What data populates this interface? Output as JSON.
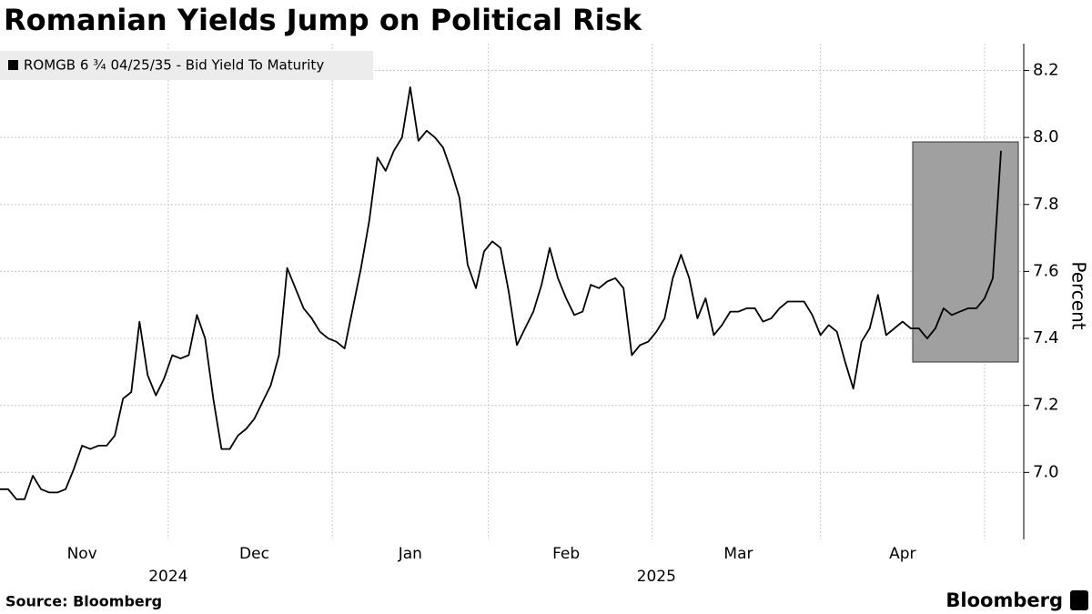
{
  "chart_data": {
    "type": "line",
    "title": "Romanian Yields Jump on Political Risk",
    "y_label": "Percent",
    "source": "Source: Bloomberg",
    "brand": "Bloomberg",
    "categories": [
      null,
      null,
      null,
      null,
      null,
      null,
      null,
      null,
      null,
      null,
      "Nov",
      null,
      null,
      null,
      null,
      null,
      null,
      null,
      null,
      null,
      null,
      null,
      null,
      null,
      null,
      null,
      null,
      null,
      null,
      null,
      null,
      "Dec",
      null,
      null,
      null,
      null,
      null,
      null,
      null,
      null,
      null,
      null,
      null,
      null,
      null,
      null,
      null,
      null,
      null,
      null,
      "Jan",
      null,
      null,
      null,
      null,
      null,
      null,
      null,
      null,
      null,
      null,
      null,
      null,
      null,
      null,
      null,
      null,
      null,
      null,
      "Feb",
      null,
      null,
      null,
      null,
      null,
      null,
      null,
      null,
      null,
      null,
      null,
      null,
      null,
      null,
      null,
      null,
      null,
      null,
      null,
      null,
      "Mar",
      null,
      null,
      null,
      null,
      null,
      null,
      null,
      null,
      null,
      null,
      null,
      null,
      null,
      null,
      null,
      null,
      null,
      null,
      null,
      "Apr",
      null,
      null,
      null,
      null,
      null,
      null,
      null,
      null,
      null,
      null,
      null,
      null
    ],
    "x_groups": [
      {
        "label": "2024",
        "categories": [
          "Nov",
          "Dec"
        ]
      },
      {
        "label": "2025",
        "categories": [
          "Jan",
          "Feb",
          "Mar",
          "Apr"
        ]
      }
    ],
    "series": [
      {
        "name": "ROMGB 6 ¾ 04/25/35 - Bid Yield To Maturity",
        "color": "#000000",
        "values": [
          6.95,
          6.95,
          6.92,
          6.92,
          6.99,
          6.95,
          6.94,
          6.94,
          6.95,
          7.01,
          7.08,
          7.07,
          7.08,
          7.08,
          7.11,
          7.22,
          7.24,
          7.45,
          7.29,
          7.23,
          7.28,
          7.35,
          7.34,
          7.35,
          7.47,
          7.4,
          7.22,
          7.07,
          7.07,
          7.11,
          7.13,
          7.16,
          7.21,
          7.26,
          7.35,
          7.61,
          7.55,
          7.49,
          7.46,
          7.42,
          7.4,
          7.39,
          7.37,
          7.49,
          7.61,
          7.75,
          7.94,
          7.9,
          7.96,
          8.0,
          8.15,
          7.99,
          8.02,
          8.0,
          7.97,
          7.9,
          7.82,
          7.62,
          7.55,
          7.66,
          7.69,
          7.67,
          7.54,
          7.38,
          7.43,
          7.48,
          7.56,
          7.67,
          7.58,
          7.52,
          7.47,
          7.48,
          7.56,
          7.55,
          7.57,
          7.58,
          7.55,
          7.35,
          7.38,
          7.39,
          7.42,
          7.46,
          7.58,
          7.65,
          7.58,
          7.46,
          7.52,
          7.41,
          7.44,
          7.48,
          7.48,
          7.49,
          7.49,
          7.45,
          7.46,
          7.49,
          7.51,
          7.51,
          7.51,
          7.47,
          7.41,
          7.44,
          7.42,
          7.33,
          7.25,
          7.39,
          7.43,
          7.53,
          7.41,
          7.43,
          7.45,
          7.43,
          7.43,
          7.4,
          7.43,
          7.49,
          7.47,
          7.48,
          7.49,
          7.49,
          7.52,
          7.58,
          7.96
        ]
      }
    ],
    "ylim": [
      6.8,
      8.28
    ],
    "yticks": [
      {
        "value": 7,
        "label": "7.0"
      },
      7.2,
      7.4,
      7.6,
      7.8,
      {
        "value": 8,
        "label": "8.0"
      },
      8.2
    ],
    "grid": true,
    "legend": "top-left"
  }
}
